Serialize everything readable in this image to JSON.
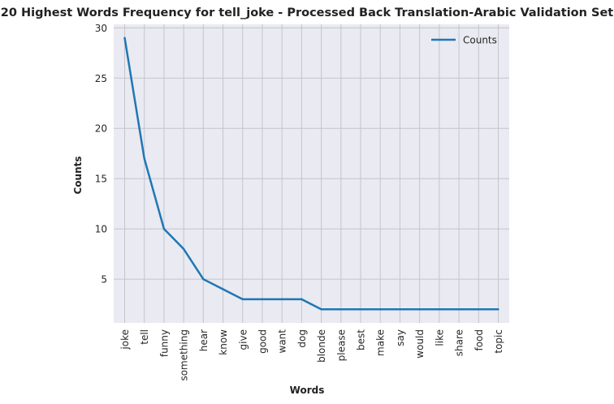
{
  "chart_data": {
    "type": "line",
    "title": "20 Highest Words Frequency for tell_joke - Processed Back Translation-Arabic Validation Set",
    "xlabel": "Words",
    "ylabel": "Counts",
    "categories": [
      "joke",
      "tell",
      "funny",
      "something",
      "hear",
      "know",
      "give",
      "good",
      "want",
      "dog",
      "blonde",
      "please",
      "best",
      "make",
      "say",
      "would",
      "like",
      "share",
      "food",
      "topic"
    ],
    "series": [
      {
        "name": "Counts",
        "values": [
          29,
          17,
          10,
          8,
          5,
          4,
          3,
          3,
          3,
          3,
          2,
          2,
          2,
          2,
          2,
          2,
          2,
          2,
          2,
          2
        ]
      }
    ],
    "ylim": [
      0.65,
      30.35
    ],
    "yticks": [
      5,
      10,
      15,
      20,
      25,
      30
    ],
    "grid": true,
    "legend": "top-right",
    "colors": {
      "line": "#1f77b4",
      "plot_bg": "#eaeaf2",
      "grid": "#c4c4cc"
    }
  }
}
